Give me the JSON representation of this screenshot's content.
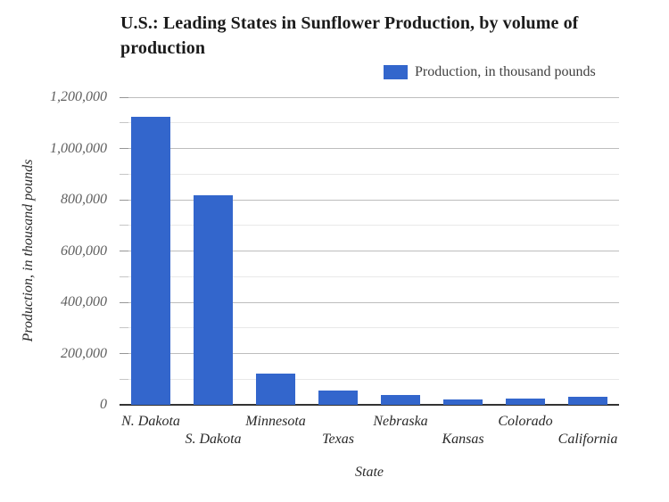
{
  "legend": {
    "label": "Production, in thousand pounds",
    "swatch_color": "#3366cc"
  },
  "chart_data": {
    "type": "bar",
    "title": "U.S.: Leading States in Sunflower Production, by volume of production",
    "categories": [
      "N. Dakota",
      "S. Dakota",
      "Minnesota",
      "Texas",
      "Nebraska",
      "Kansas",
      "Colorado",
      "California"
    ],
    "values": [
      1123000,
      816000,
      121000,
      56000,
      40000,
      22000,
      23000,
      31000
    ],
    "series_name": "Production, in thousand pounds",
    "xlabel": "State",
    "ylabel": "Production, in thousand pounds",
    "ylim": [
      0,
      1200000
    ],
    "y_major_step": 200000,
    "y_minor_step": 100000,
    "y_tick_labels": [
      "0",
      "200,000",
      "400,000",
      "600,000",
      "800,000",
      "1,000,000",
      "1,200,000"
    ],
    "grid": true,
    "legend_position": "top-right",
    "bar_color": "#3366cc"
  }
}
